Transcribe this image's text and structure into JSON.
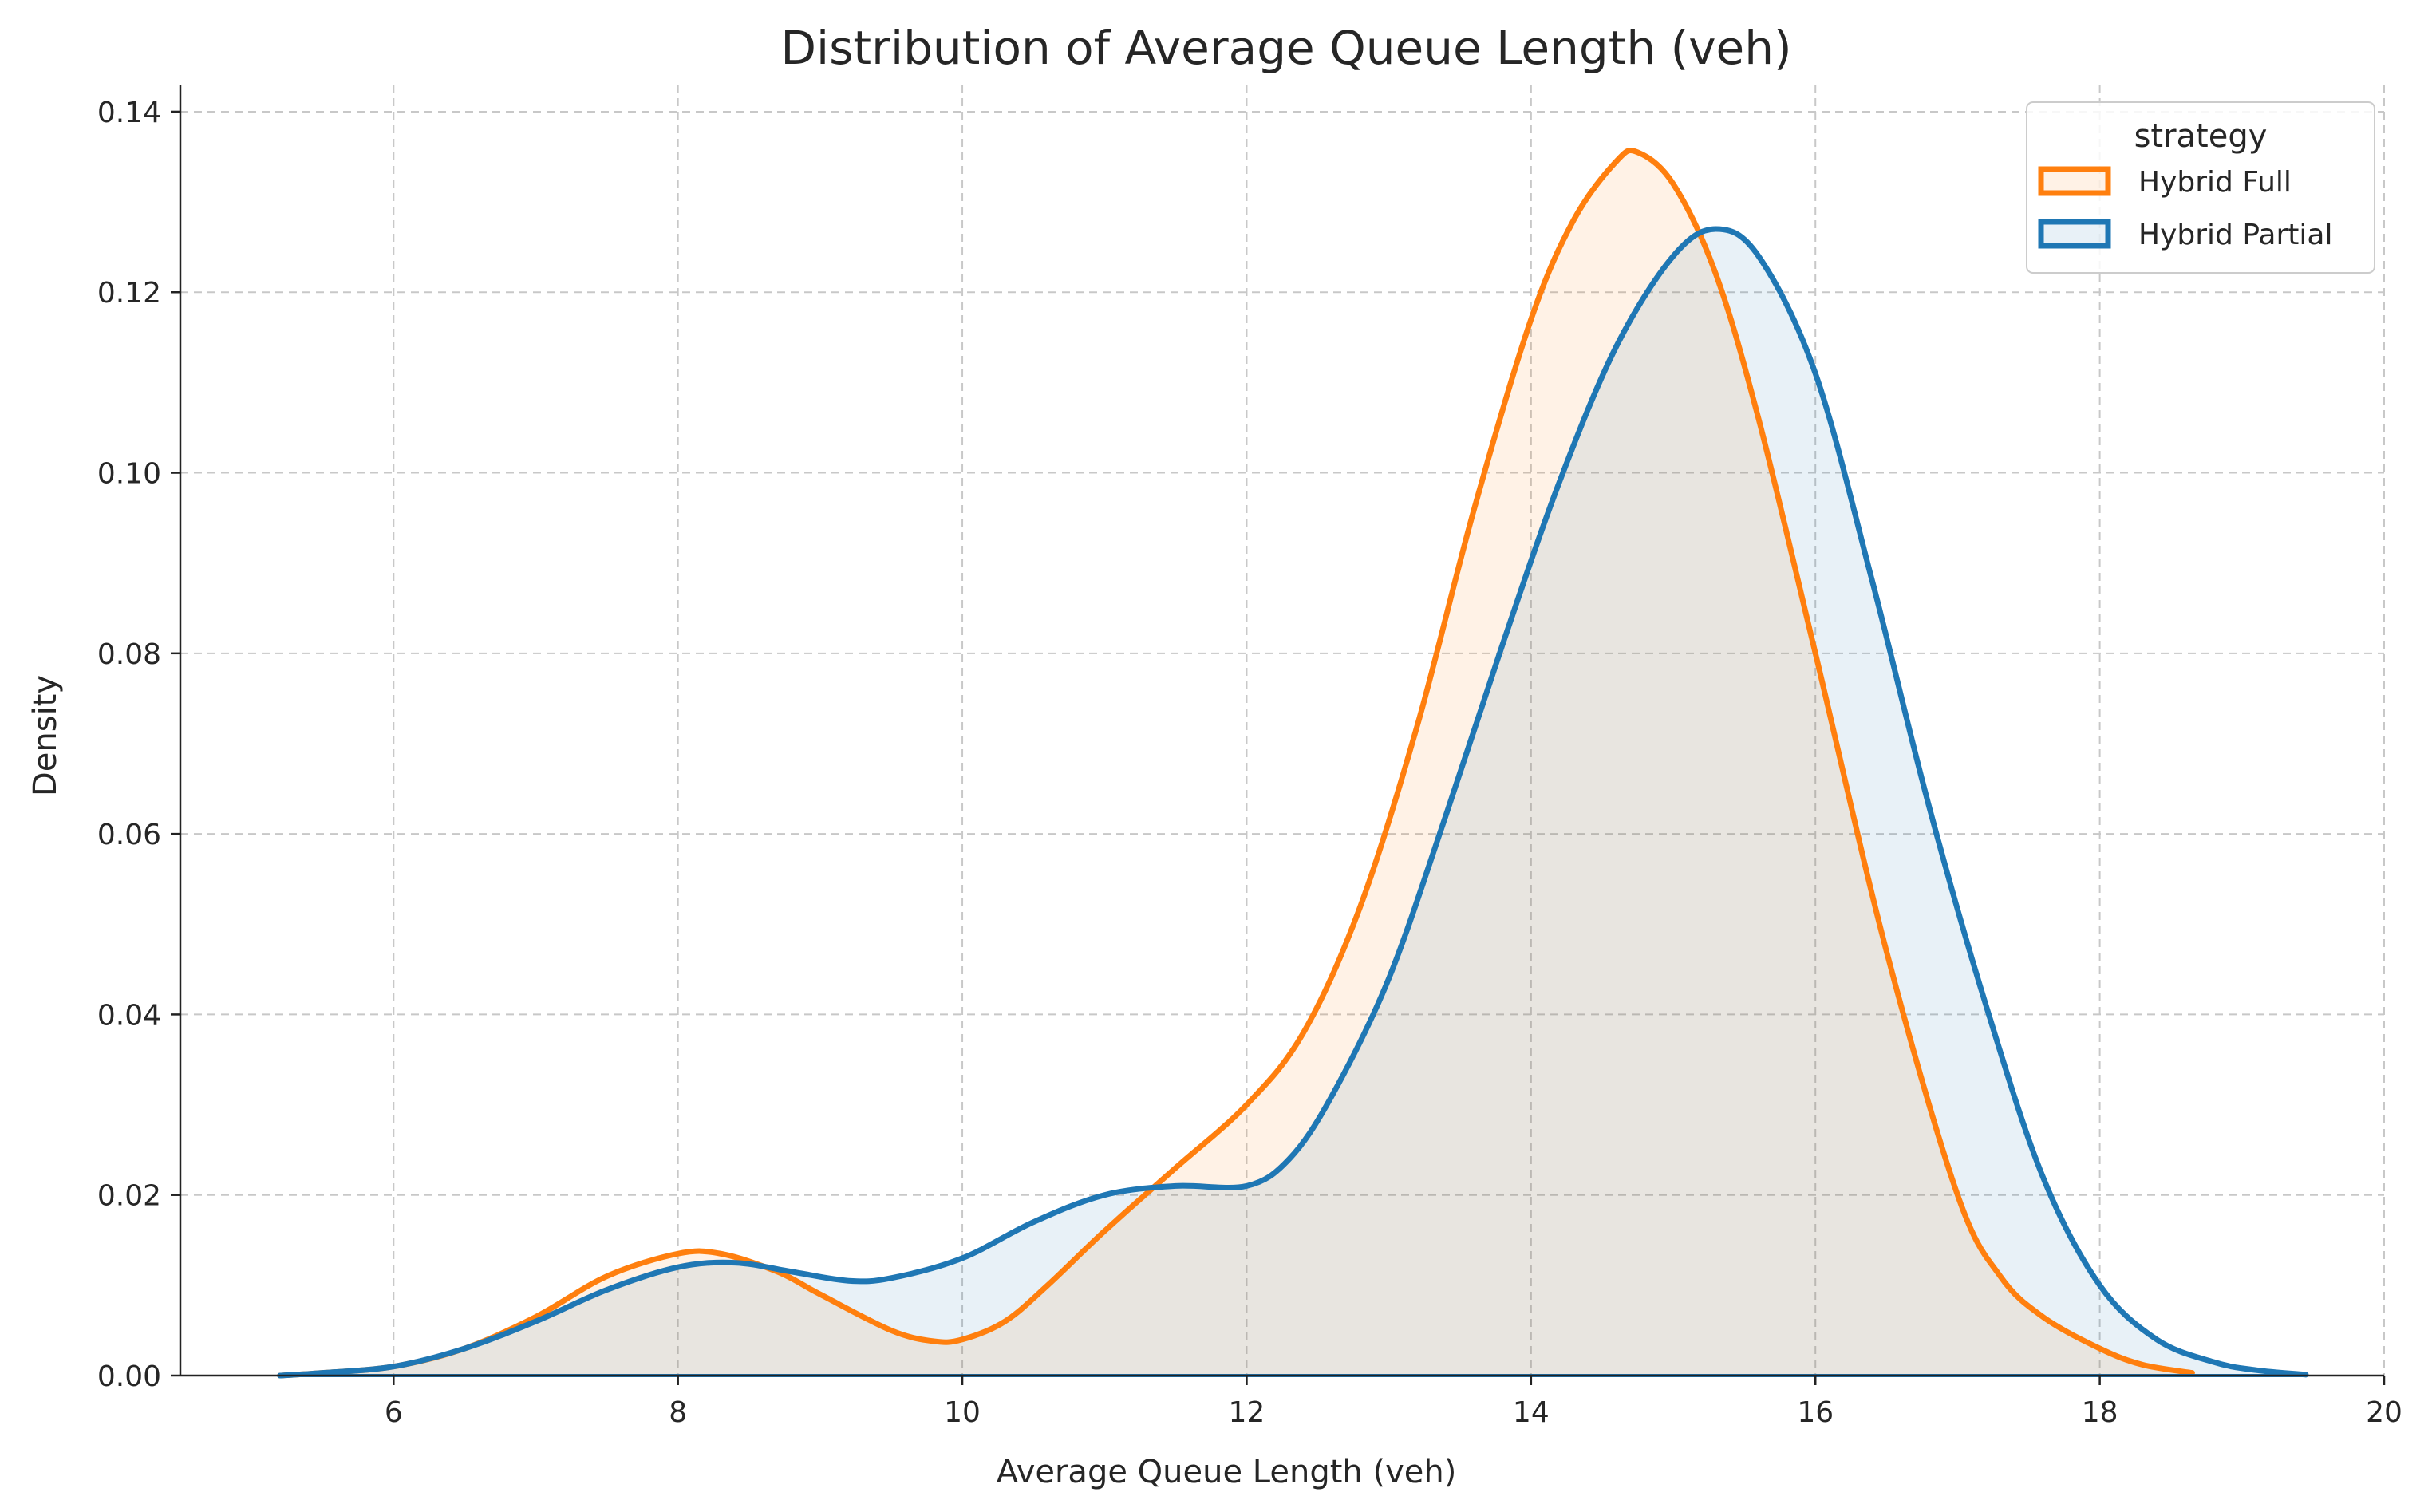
{
  "chart_data": {
    "type": "area",
    "title": "Distribution of Average Queue Length (veh)",
    "xlabel": "Average Queue Length (veh)",
    "ylabel": "Density",
    "xlim": [
      4.5,
      20
    ],
    "ylim": [
      0,
      0.143
    ],
    "xticks": [
      6,
      8,
      10,
      12,
      14,
      16,
      18,
      20
    ],
    "yticks": [
      0.0,
      0.02,
      0.04,
      0.06,
      0.08,
      0.1,
      0.12,
      0.14
    ],
    "ytick_labels": [
      "0.00",
      "0.02",
      "0.04",
      "0.06",
      "0.08",
      "0.10",
      "0.12",
      "0.14"
    ],
    "xtick_labels": [
      "6",
      "8",
      "10",
      "12",
      "14",
      "16",
      "18",
      "20"
    ],
    "grid": true,
    "legend": {
      "title": "strategy",
      "position": "top-right"
    },
    "series": [
      {
        "name": "Hybrid Full",
        "color": "#ff7f0e",
        "points": [
          [
            5.2,
            0.0
          ],
          [
            5.5,
            0.0003
          ],
          [
            6.0,
            0.001
          ],
          [
            6.5,
            0.003
          ],
          [
            7.0,
            0.0065
          ],
          [
            7.5,
            0.011
          ],
          [
            8.0,
            0.0135
          ],
          [
            8.3,
            0.0135
          ],
          [
            8.7,
            0.0115
          ],
          [
            9.0,
            0.009
          ],
          [
            9.5,
            0.005
          ],
          [
            9.8,
            0.0038
          ],
          [
            10.0,
            0.004
          ],
          [
            10.3,
            0.006
          ],
          [
            10.6,
            0.01
          ],
          [
            11.0,
            0.016
          ],
          [
            11.5,
            0.023
          ],
          [
            12.0,
            0.03
          ],
          [
            12.4,
            0.038
          ],
          [
            12.8,
            0.052
          ],
          [
            13.2,
            0.072
          ],
          [
            13.6,
            0.096
          ],
          [
            14.0,
            0.117
          ],
          [
            14.3,
            0.128
          ],
          [
            14.6,
            0.1345
          ],
          [
            14.75,
            0.1355
          ],
          [
            15.0,
            0.132
          ],
          [
            15.3,
            0.122
          ],
          [
            15.6,
            0.106
          ],
          [
            16.0,
            0.08
          ],
          [
            16.5,
            0.047
          ],
          [
            17.0,
            0.02
          ],
          [
            17.3,
            0.011
          ],
          [
            17.6,
            0.0065
          ],
          [
            18.0,
            0.003
          ],
          [
            18.3,
            0.0012
          ],
          [
            18.65,
            0.0003
          ]
        ]
      },
      {
        "name": "Hybrid Partial",
        "color": "#1f77b4",
        "points": [
          [
            5.2,
            0.0
          ],
          [
            5.5,
            0.0003
          ],
          [
            6.0,
            0.001
          ],
          [
            6.5,
            0.003
          ],
          [
            7.0,
            0.006
          ],
          [
            7.5,
            0.0095
          ],
          [
            8.0,
            0.012
          ],
          [
            8.4,
            0.0125
          ],
          [
            8.8,
            0.0115
          ],
          [
            9.2,
            0.0105
          ],
          [
            9.5,
            0.0108
          ],
          [
            10.0,
            0.013
          ],
          [
            10.5,
            0.017
          ],
          [
            11.0,
            0.02
          ],
          [
            11.5,
            0.021
          ],
          [
            12.0,
            0.021
          ],
          [
            12.3,
            0.024
          ],
          [
            12.6,
            0.031
          ],
          [
            13.0,
            0.044
          ],
          [
            13.4,
            0.062
          ],
          [
            13.8,
            0.081
          ],
          [
            14.2,
            0.099
          ],
          [
            14.6,
            0.114
          ],
          [
            15.0,
            0.124
          ],
          [
            15.3,
            0.127
          ],
          [
            15.6,
            0.124
          ],
          [
            16.0,
            0.111
          ],
          [
            16.4,
            0.088
          ],
          [
            16.8,
            0.063
          ],
          [
            17.2,
            0.041
          ],
          [
            17.6,
            0.022
          ],
          [
            18.0,
            0.01
          ],
          [
            18.4,
            0.004
          ],
          [
            18.8,
            0.0015
          ],
          [
            19.1,
            0.0006
          ],
          [
            19.45,
            0.0001
          ]
        ]
      }
    ]
  }
}
